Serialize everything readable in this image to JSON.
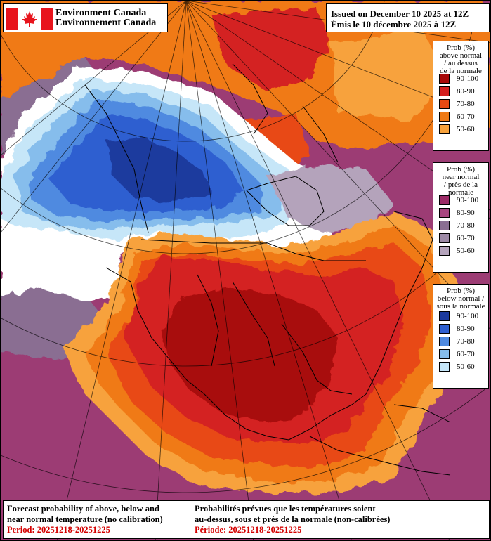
{
  "header": {
    "agency_en": "Environment Canada",
    "agency_fr": "Environnement Canada",
    "issued_en": "Issued on December 10 2025 at 12Z",
    "issued_fr": "Émis le 10 décembre 2025 à 12Z"
  },
  "legends": [
    {
      "title": "Prob (%)\nabove normal\n/ au dessus\nde la normale",
      "items": [
        {
          "label": "90-100",
          "color": "#a80a0a"
        },
        {
          "label": "80-90",
          "color": "#d42020"
        },
        {
          "label": "70-80",
          "color": "#e84a12"
        },
        {
          "label": "60-70",
          "color": "#f07a14"
        },
        {
          "label": "50-60",
          "color": "#f7a23c"
        }
      ]
    },
    {
      "title": "Prob (%)\nnear normal\n/ près de la\nnormale",
      "items": [
        {
          "label": "90-100",
          "color": "#9b2a66"
        },
        {
          "label": "80-90",
          "color": "#a84580"
        },
        {
          "label": "70-80",
          "color": "#8a6e92"
        },
        {
          "label": "60-70",
          "color": "#9d8aa6"
        },
        {
          "label": "50-60",
          "color": "#b4a3bb"
        }
      ]
    },
    {
      "title": "Prob (%)\nbelow normal /\nsous la normale",
      "items": [
        {
          "label": "90-100",
          "color": "#1c3a9e"
        },
        {
          "label": "80-90",
          "color": "#2e5fd0"
        },
        {
          "label": "70-80",
          "color": "#4f8ae0"
        },
        {
          "label": "60-70",
          "color": "#86bdec"
        },
        {
          "label": "50-60",
          "color": "#c6e6f8"
        }
      ]
    }
  ],
  "footer": {
    "en_line1": "Forecast probability of above, below and",
    "en_line2": "near normal temperature (no calibration)",
    "en_period": "Period: 20251218-20251225",
    "fr_line1": "Probabilités prévues que les températures soient",
    "fr_line2": "au-dessus, sous et près de la normale (non-calibrées)",
    "fr_period": "Période: 20251218-20251225"
  },
  "map_colors": {
    "background_near": "#9c3c74",
    "flag_red": "#e8141c"
  }
}
